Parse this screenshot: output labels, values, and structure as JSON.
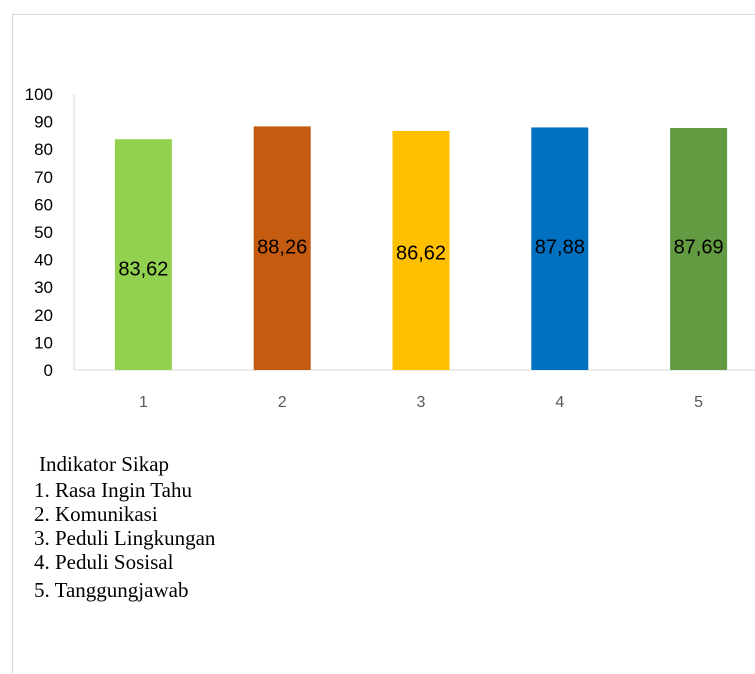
{
  "chart_data": {
    "type": "bar",
    "categories": [
      "1",
      "2",
      "3",
      "4",
      "5"
    ],
    "values": [
      83.62,
      88.26,
      86.62,
      87.88,
      87.69
    ],
    "data_labels": [
      "83,62",
      "88,26",
      "86,62",
      "87,88",
      "87,69"
    ],
    "bar_colors": [
      "#92d050",
      "#c55a11",
      "#ffc000",
      "#0070c0",
      "#629b41"
    ],
    "ylim": [
      0,
      100
    ],
    "yticks": [
      0,
      10,
      20,
      30,
      40,
      50,
      60,
      70,
      80,
      90,
      100
    ],
    "title": "",
    "xlabel": "",
    "ylabel": "",
    "grid": false
  },
  "legend": {
    "title": "Indikator Sikap",
    "items": [
      "1. Rasa Ingin Tahu",
      "2. Komunikasi",
      "3. Peduli Lingkungan",
      "4. Peduli Sosisal",
      "5. Tanggungjawab"
    ]
  }
}
